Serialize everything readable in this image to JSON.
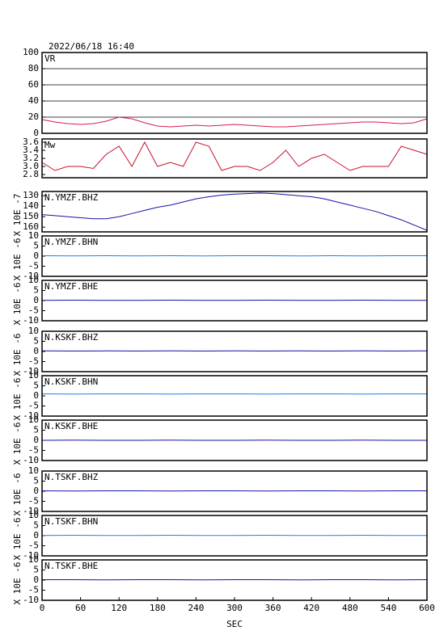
{
  "chart_data": [
    {
      "type": "line",
      "title": "2022/06/18 16:40",
      "label": "VR",
      "color": "#d81b4a",
      "grid": true,
      "x": [
        0,
        20,
        40,
        60,
        80,
        100,
        120,
        140,
        160,
        180,
        200,
        220,
        240,
        260,
        280,
        300,
        320,
        340,
        360,
        380,
        400,
        420,
        440,
        460,
        480,
        500,
        520,
        540,
        560,
        580,
        600
      ],
      "values": [
        17,
        14,
        12,
        11,
        12,
        15,
        20,
        18,
        13,
        9,
        8,
        9,
        10,
        9,
        10,
        11,
        10,
        9,
        8,
        8,
        9,
        10,
        11,
        12,
        13,
        14,
        14,
        13,
        12,
        13,
        18
      ],
      "xlim": [
        0,
        600
      ],
      "ylim": [
        0,
        100
      ],
      "yticks": [
        0,
        20,
        40,
        60,
        80,
        100
      ]
    },
    {
      "type": "line",
      "label": "Mw",
      "color": "#c8102e",
      "x": [
        0,
        20,
        40,
        60,
        80,
        100,
        120,
        140,
        160,
        180,
        200,
        220,
        240,
        260,
        280,
        300,
        320,
        340,
        360,
        380,
        400,
        420,
        440,
        460,
        480,
        500,
        520,
        540,
        560,
        580,
        600
      ],
      "values": [
        3.1,
        2.9,
        3.0,
        3.0,
        2.95,
        3.3,
        3.5,
        3.0,
        3.6,
        3.0,
        3.1,
        3.0,
        3.6,
        3.5,
        2.9,
        3.0,
        3.0,
        2.9,
        3.1,
        3.4,
        3.0,
        3.2,
        3.3,
        3.1,
        2.9,
        3.0,
        3.0,
        3.0,
        3.5,
        3.4,
        3.3
      ],
      "xlim": [
        0,
        600
      ],
      "ylim": [
        2.72,
        3.68
      ],
      "yticks": [
        2.8,
        {
          "value": 3,
          "label": "3.0"
        },
        3.2,
        3.4,
        3.6
      ]
    },
    {
      "type": "line",
      "label": "N.YMZF.BHZ",
      "ylabel": "X 10E -7",
      "color": "#1414a8",
      "x": [
        0,
        20,
        40,
        60,
        80,
        100,
        120,
        140,
        160,
        180,
        200,
        220,
        240,
        260,
        280,
        300,
        320,
        340,
        360,
        380,
        400,
        420,
        440,
        460,
        480,
        500,
        520,
        540,
        560,
        580,
        600
      ],
      "values": [
        148,
        149,
        150,
        151,
        152,
        152,
        150,
        147,
        144,
        141,
        139,
        136,
        133,
        131,
        129.5,
        128.5,
        128,
        127.5,
        128,
        129,
        130,
        131,
        133,
        136,
        139,
        142,
        145,
        149,
        153,
        158,
        163
      ],
      "xlim": [
        0,
        600
      ],
      "ylim": [
        164.5,
        126
      ],
      "yticks": [
        130,
        140,
        150,
        160
      ]
    },
    {
      "type": "line",
      "label": "N.YMZF.BHN",
      "ylabel": "X 10E -6",
      "color": "#1e82e6",
      "x": [
        0,
        50,
        100,
        150,
        200,
        250,
        300,
        350,
        400,
        450,
        500,
        550,
        600
      ],
      "values": [
        0.2,
        0.1,
        0.2,
        0.1,
        0.2,
        0.1,
        0.2,
        0.2,
        0.1,
        0.2,
        0.1,
        0.2,
        0.2
      ],
      "xlim": [
        0,
        600
      ],
      "ylim": [
        -10,
        10
      ],
      "yticks": [
        -10,
        -5,
        0,
        5,
        10
      ]
    },
    {
      "type": "line",
      "label": "N.YMZF.BHE",
      "ylabel": "X 10E -6",
      "color": "#1414a8",
      "x": [
        0,
        50,
        100,
        150,
        200,
        250,
        300,
        350,
        400,
        450,
        500,
        550,
        600
      ],
      "values": [
        0.1,
        0.2,
        0.1,
        0.1,
        0.2,
        0.1,
        0.1,
        0.2,
        0.1,
        0.1,
        0.2,
        0.1,
        0.1
      ],
      "xlim": [
        0,
        600
      ],
      "ylim": [
        -10,
        10
      ],
      "yticks": [
        -10,
        -5,
        0,
        5,
        10
      ]
    },
    {
      "type": "line",
      "label": "N.KSKF.BHZ",
      "ylabel": "X 10E -6",
      "color": "#1414a8",
      "x": [
        0,
        50,
        100,
        150,
        200,
        250,
        300,
        350,
        400,
        450,
        500,
        550,
        600
      ],
      "values": [
        0.3,
        0.2,
        0.3,
        0.2,
        0.3,
        0.2,
        0.3,
        0.2,
        0.3,
        0.2,
        0.3,
        0.2,
        0.3
      ],
      "xlim": [
        0,
        600
      ],
      "ylim": [
        -10,
        10
      ],
      "yticks": [
        -10,
        -5,
        0,
        5,
        10
      ]
    },
    {
      "type": "line",
      "label": "N.KSKF.BHN",
      "ylabel": "X 10E -6",
      "color": "#1e82e6",
      "x": [
        0,
        50,
        100,
        150,
        200,
        250,
        300,
        350,
        400,
        450,
        500,
        550,
        600
      ],
      "values": [
        1,
        0.9,
        1,
        1,
        0.9,
        1,
        1,
        0.9,
        1,
        1,
        0.9,
        1,
        1
      ],
      "xlim": [
        0,
        600
      ],
      "ylim": [
        -10,
        10
      ],
      "yticks": [
        -10,
        -5,
        0,
        5,
        10
      ]
    },
    {
      "type": "line",
      "label": "N.KSKF.BHE",
      "ylabel": "X 10E -6",
      "color": "#1414a8",
      "x": [
        0,
        50,
        100,
        150,
        200,
        250,
        300,
        350,
        400,
        450,
        500,
        550,
        600
      ],
      "values": [
        0,
        0.1,
        0,
        0,
        0.1,
        0,
        0,
        0.1,
        0,
        0,
        0.1,
        0,
        0
      ],
      "xlim": [
        0,
        600
      ],
      "ylim": [
        -10,
        10
      ],
      "yticks": [
        -10,
        -5,
        0,
        5,
        10
      ]
    },
    {
      "type": "line",
      "label": "N.TSKF.BHZ",
      "ylabel": "X 10E -6",
      "color": "#1414a8",
      "x": [
        0,
        50,
        100,
        150,
        200,
        250,
        300,
        350,
        400,
        450,
        500,
        550,
        600
      ],
      "values": [
        0.2,
        0.1,
        0.2,
        0.2,
        0.1,
        0.2,
        0.2,
        0.1,
        0.2,
        0.2,
        0.1,
        0.2,
        0.2
      ],
      "xlim": [
        0,
        600
      ],
      "ylim": [
        -10,
        10
      ],
      "yticks": [
        -10,
        -5,
        0,
        5,
        10
      ]
    },
    {
      "type": "line",
      "label": "N.TSKF.BHN",
      "ylabel": "X 10E -6",
      "color": "#1e82e6",
      "x": [
        0,
        50,
        100,
        150,
        200,
        250,
        300,
        350,
        400,
        450,
        500,
        550,
        600
      ],
      "values": [
        0.1,
        0.2,
        0.1,
        0.1,
        0.2,
        0.1,
        0.1,
        0.2,
        0.1,
        0.1,
        0.2,
        0.1,
        0.1
      ],
      "xlim": [
        0,
        600
      ],
      "ylim": [
        -10,
        10
      ],
      "yticks": [
        -10,
        -5,
        0,
        5,
        10
      ]
    },
    {
      "type": "line",
      "label": "N.TSKF.BHE",
      "ylabel": "X 10E -6",
      "color": "#1414a8",
      "x": [
        0,
        50,
        100,
        150,
        200,
        250,
        300,
        350,
        400,
        450,
        500,
        550,
        600
      ],
      "values": [
        0.2,
        0.2,
        0.1,
        0.2,
        0.2,
        0.1,
        0.2,
        0.2,
        0.1,
        0.2,
        0.2,
        0.1,
        0.2
      ],
      "xlim": [
        0,
        600
      ],
      "ylim": [
        -10,
        10
      ],
      "yticks": [
        -10,
        -5,
        0,
        5,
        10
      ],
      "xticks": [
        0,
        60,
        120,
        180,
        240,
        300,
        360,
        420,
        480,
        540,
        600
      ],
      "xlabel": "SEC"
    }
  ]
}
